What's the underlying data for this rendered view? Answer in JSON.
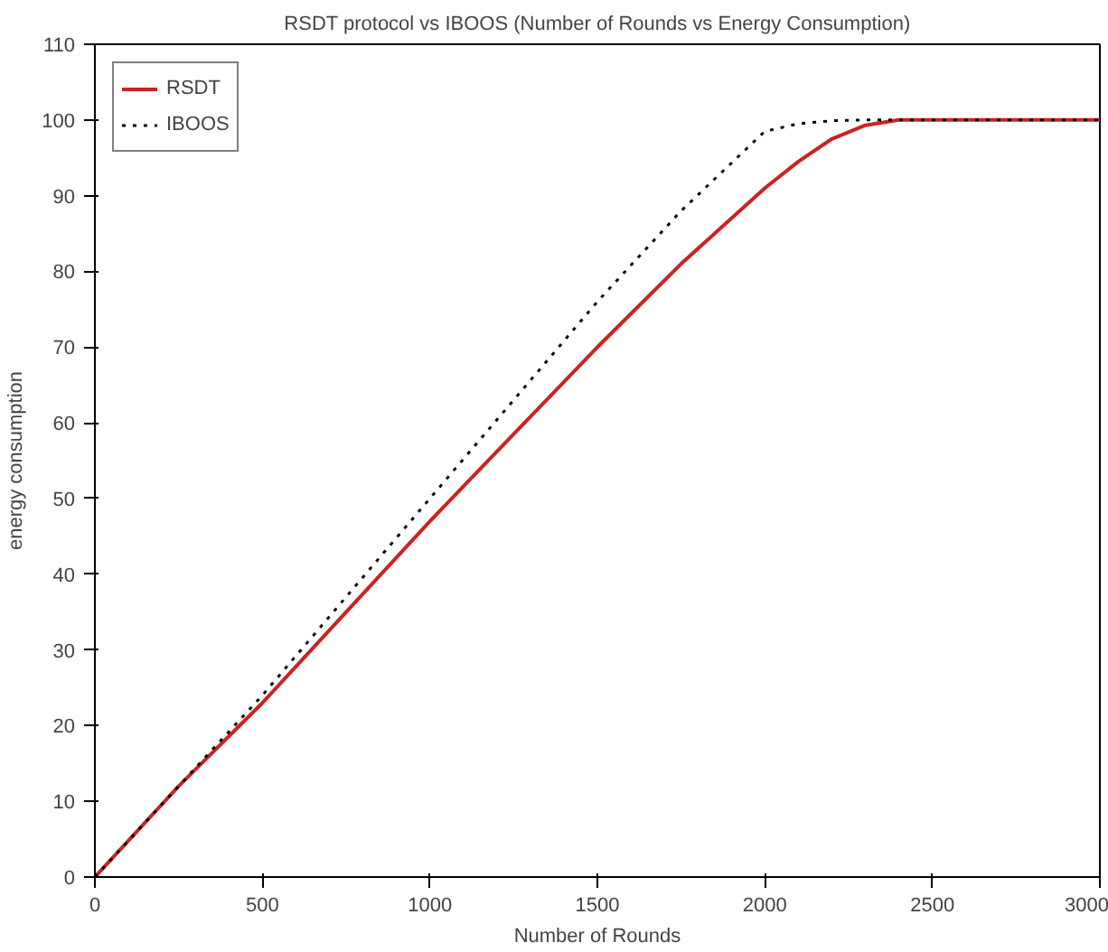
{
  "chart_data": {
    "type": "line",
    "title": "RSDT protocol vs IBOOS (Number of Rounds vs Energy Consumption)",
    "xlabel": "Number of Rounds",
    "ylabel": "energy consumption",
    "x": [
      0,
      250,
      500,
      750,
      1000,
      1250,
      1500,
      1750,
      2000,
      2100,
      2200,
      2300,
      2400,
      2500,
      3000
    ],
    "series": [
      {
        "name": "RSDT",
        "color": "#cc2222",
        "line_style": "solid",
        "values": [
          0,
          12,
          23,
          35,
          47,
          58.5,
          70,
          81,
          91,
          94.5,
          97.5,
          99.3,
          100,
          100,
          100
        ]
      },
      {
        "name": "IBOOS",
        "color": "#000000",
        "line_style": "dotted",
        "values": [
          0,
          12,
          24,
          37,
          50,
          63,
          76,
          88,
          98.5,
          99.5,
          99.9,
          100,
          100,
          100,
          100
        ]
      }
    ],
    "xlim": [
      0,
      3000
    ],
    "ylim": [
      0,
      110
    ],
    "xticks": [
      0,
      500,
      1000,
      1500,
      2000,
      2500,
      3000
    ],
    "yticks": [
      0,
      10,
      20,
      30,
      40,
      50,
      60,
      70,
      80,
      90,
      100,
      110
    ],
    "grid": false,
    "legend": "top left"
  }
}
